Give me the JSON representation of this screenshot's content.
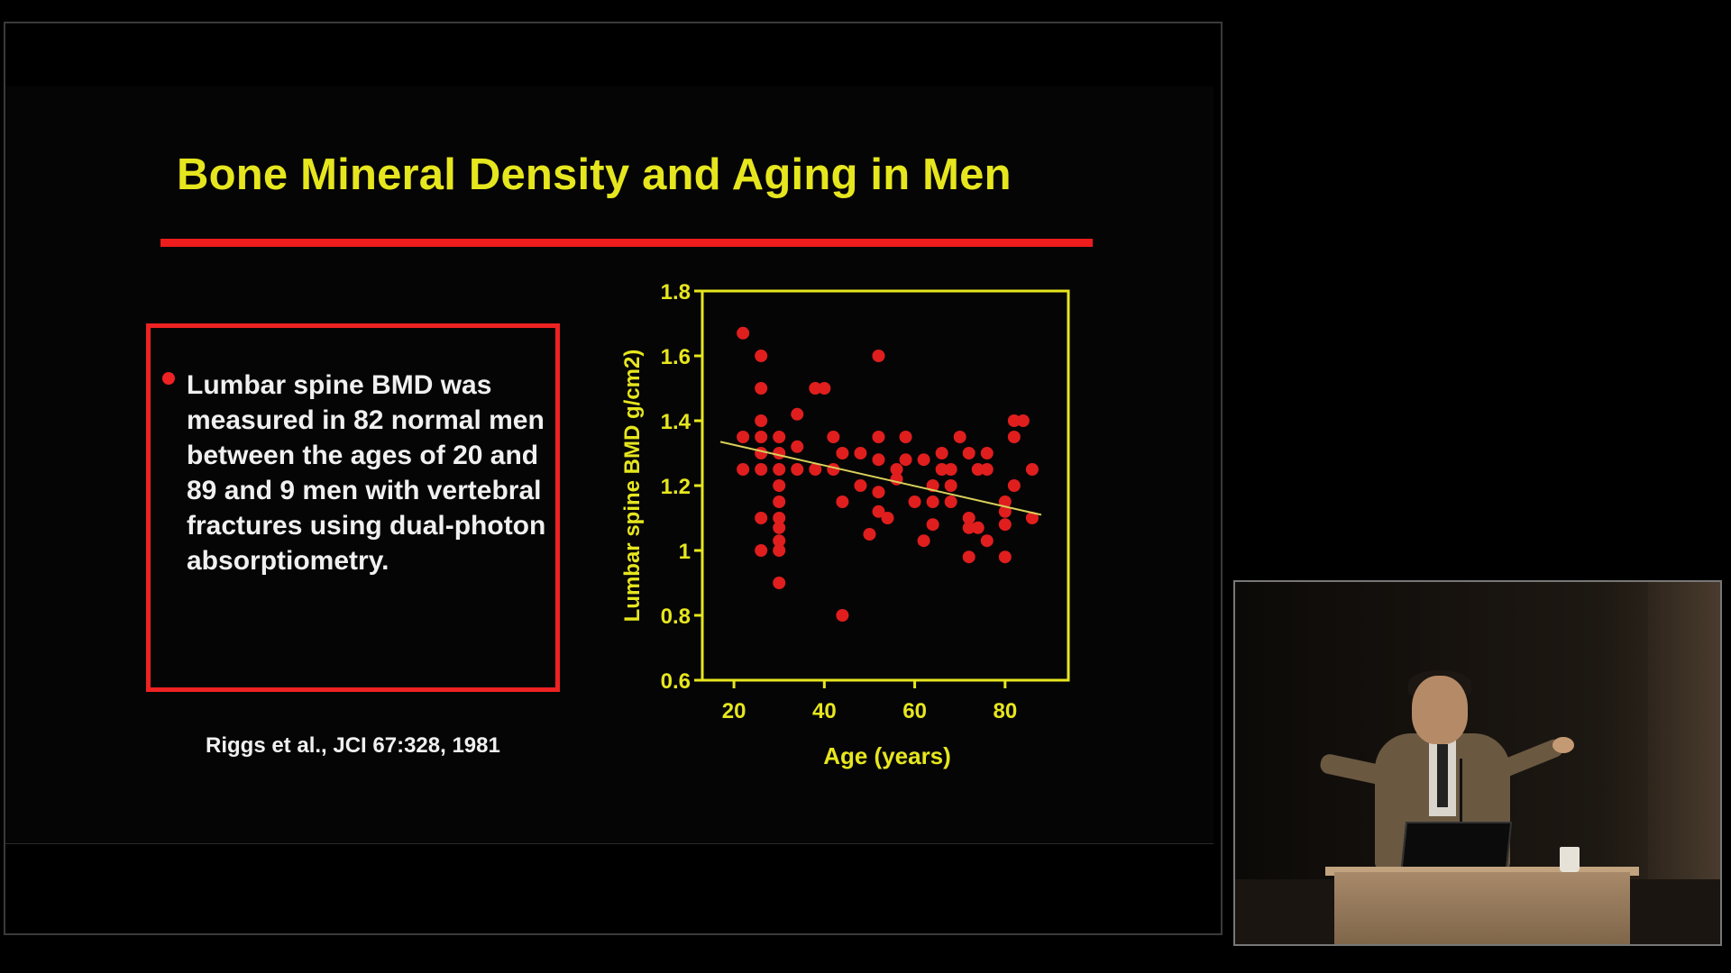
{
  "slide": {
    "title": "Bone Mineral Density and Aging in Men",
    "bullet": "Lumbar spine BMD was measured in 82 normal men between the ages of 20 and 89 and 9 men with vertebral fractures using dual-photon absorptiometry.",
    "citation": "Riggs et al., JCI 67:328, 1981",
    "colors": {
      "title": "#e6e61e",
      "accent_red": "#ee1c1c",
      "text": "#f0f0f0",
      "axis": "#e6e61e",
      "points": "#e01e1e",
      "trend": "#d9cf5a"
    }
  },
  "chart_data": {
    "type": "scatter",
    "xlabel": "Age (years)",
    "ylabel": "Lumbar spine BMD g/cm2)",
    "xlim": [
      13,
      94
    ],
    "ylim": [
      0.6,
      1.8
    ],
    "xticks": [
      20,
      40,
      60,
      80
    ],
    "xtick_labels": [
      "20",
      "40",
      "60",
      "80"
    ],
    "yticks": [
      0.6,
      0.8,
      1.0,
      1.2,
      1.4,
      1.6,
      1.8
    ],
    "ytick_labels": [
      "0.6",
      "0.8",
      "1",
      "1.2",
      "1.4",
      "1.6",
      "1.8"
    ],
    "grid": false,
    "points": [
      [
        22,
        1.67
      ],
      [
        26,
        1.6
      ],
      [
        26,
        1.5
      ],
      [
        26,
        1.4
      ],
      [
        22,
        1.35
      ],
      [
        26,
        1.35
      ],
      [
        30,
        1.35
      ],
      [
        26,
        1.3
      ],
      [
        30,
        1.3
      ],
      [
        22,
        1.25
      ],
      [
        26,
        1.25
      ],
      [
        30,
        1.25
      ],
      [
        30,
        1.2
      ],
      [
        30,
        1.15
      ],
      [
        26,
        1.1
      ],
      [
        30,
        1.1
      ],
      [
        30,
        1.07
      ],
      [
        30,
        1.03
      ],
      [
        26,
        1.0
      ],
      [
        30,
        1.0
      ],
      [
        30,
        0.9
      ],
      [
        34,
        1.42
      ],
      [
        34,
        1.32
      ],
      [
        34,
        1.25
      ],
      [
        38,
        1.5
      ],
      [
        40,
        1.5
      ],
      [
        38,
        1.25
      ],
      [
        42,
        1.35
      ],
      [
        42,
        1.25
      ],
      [
        44,
        1.3
      ],
      [
        44,
        1.15
      ],
      [
        44,
        0.8
      ],
      [
        48,
        1.3
      ],
      [
        48,
        1.2
      ],
      [
        50,
        1.05
      ],
      [
        52,
        1.6
      ],
      [
        52,
        1.35
      ],
      [
        52,
        1.28
      ],
      [
        52,
        1.18
      ],
      [
        54,
        1.1
      ],
      [
        52,
        1.12
      ],
      [
        56,
        1.25
      ],
      [
        56,
        1.22
      ],
      [
        58,
        1.35
      ],
      [
        58,
        1.28
      ],
      [
        60,
        1.15
      ],
      [
        62,
        1.28
      ],
      [
        62,
        1.03
      ],
      [
        64,
        1.2
      ],
      [
        64,
        1.15
      ],
      [
        64,
        1.08
      ],
      [
        66,
        1.3
      ],
      [
        66,
        1.25
      ],
      [
        68,
        1.25
      ],
      [
        68,
        1.2
      ],
      [
        68,
        1.15
      ],
      [
        70,
        1.35
      ],
      [
        72,
        1.3
      ],
      [
        72,
        1.1
      ],
      [
        72,
        1.07
      ],
      [
        72,
        0.98
      ],
      [
        74,
        1.25
      ],
      [
        74,
        1.07
      ],
      [
        76,
        1.3
      ],
      [
        76,
        1.25
      ],
      [
        76,
        1.03
      ],
      [
        80,
        1.15
      ],
      [
        80,
        1.12
      ],
      [
        80,
        1.08
      ],
      [
        80,
        0.98
      ],
      [
        82,
        1.4
      ],
      [
        82,
        1.35
      ],
      [
        82,
        1.2
      ],
      [
        84,
        1.4
      ],
      [
        86,
        1.25
      ],
      [
        86,
        1.1
      ]
    ],
    "trend_line": [
      [
        17,
        1.335
      ],
      [
        88,
        1.11
      ]
    ]
  }
}
